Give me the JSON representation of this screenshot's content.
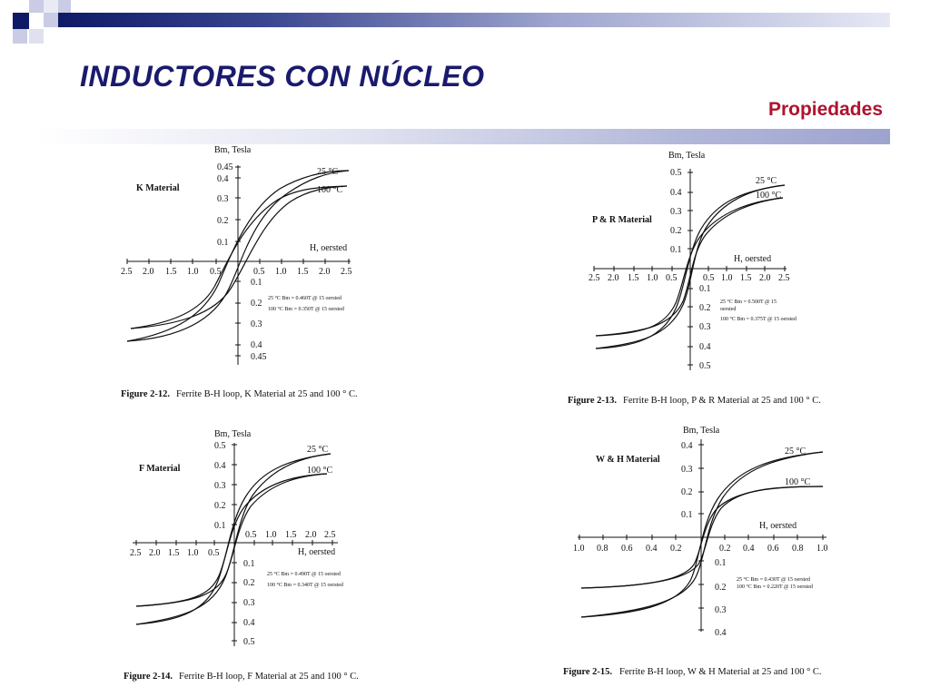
{
  "slide": {
    "title": "INDUCTORES CON NÚCLEO",
    "subtitle": "Propiedades",
    "colors": {
      "title": "#1a1a6e",
      "subtitle": "#b0112e",
      "accent_dark": "#0e1a66",
      "accent_light": "#b8bcdc"
    }
  },
  "figures": [
    {
      "material_label": "K Material",
      "y_label": "Bm, Tesla",
      "x_label": "H,  oersted",
      "y_ticks_pos": [
        "0.45",
        "0.4",
        "0.3",
        "0.2",
        "0.1"
      ],
      "y_ticks_neg": [
        "0.1",
        "0.2",
        "0.3",
        "0.4",
        "0.45"
      ],
      "x_ticks_neg": [
        "2.5",
        "2.0",
        "1.5",
        "1.0",
        "0.5"
      ],
      "x_ticks_pos": [
        "0.5",
        "1.0",
        "1.5",
        "2.0",
        "2.5"
      ],
      "curve_labels": [
        "25 °C",
        "100 °C"
      ],
      "notes": [
        "25 °C    Bm = 0.460T @ 15 oersted",
        "100 °C  Bm = 0.350T @ 15 oersted"
      ],
      "caption_num": "Figure 2-12.",
      "caption_text": "Ferrite B-H loop, K Material at 25 and 100 ° C."
    },
    {
      "material_label": "P & R Material",
      "y_label": "Bm, Tesla",
      "x_label": "H,  oersted",
      "y_ticks_pos": [
        "0.5",
        "0.4",
        "0.3",
        "0.2",
        "0.1"
      ],
      "y_ticks_neg": [
        "0.1",
        "0.2",
        "0.3",
        "0.4",
        "0.5"
      ],
      "x_ticks_neg": [
        "2.5",
        "2.0",
        "1.5",
        "1.0",
        "0.5"
      ],
      "x_ticks_pos": [
        "0.5",
        "1.0",
        "1.5",
        "2.0",
        "2.5"
      ],
      "curve_labels": [
        "25 °C",
        "100 °C"
      ],
      "notes": [
        "25 °C    Bm = 0.500T @ 15",
        "oersted",
        "100 °C Bm = 0.375T @ 15 oersted"
      ],
      "caption_num": "Figure 2-13.",
      "caption_text": "Ferrite B-H loop, P & R Material at 25 and 100 ° C."
    },
    {
      "material_label": "F Material",
      "y_label": "Bm, Tesla",
      "x_label": "H,  oersted",
      "y_ticks_pos": [
        "0.5",
        "0.4",
        "0.3",
        "0.2",
        "0.1"
      ],
      "y_ticks_neg": [
        "0.1",
        "0.2",
        "0.3",
        "0.4",
        "0.5"
      ],
      "x_ticks_neg": [
        "2.5",
        "2.0",
        "1.5",
        "1.0",
        "0.5"
      ],
      "x_ticks_pos": [
        "0.5",
        "1.0",
        "1.5",
        "2.0",
        "2.5"
      ],
      "curve_labels": [
        "25 °C",
        "100 °C"
      ],
      "notes": [
        "25 °C    Bm = 0.490T @ 15 oersted",
        "100 °C Bm = 0.340T @ 15 oersted"
      ],
      "caption_num": "Figure 2-14.",
      "caption_text": "Ferrite B-H loop, F Material at 25 and 100 ° C."
    },
    {
      "material_label": "W & H Material",
      "y_label": "Bm, Tesla",
      "x_label": "H,  oersted",
      "y_ticks_pos": [
        "0.4",
        "0.3",
        "0.2",
        "0.1"
      ],
      "y_ticks_neg": [
        "0.1",
        "0.2",
        "0.3",
        "0.4"
      ],
      "x_ticks_neg": [
        "1.0",
        "0.8",
        "0.6",
        "0.4",
        "0.2"
      ],
      "x_ticks_pos": [
        "0.2",
        "0.4",
        "0.6",
        "0.8",
        "1.0"
      ],
      "curve_labels": [
        "25 °C",
        "100 °C"
      ],
      "notes": [
        "25 °C    Bm = 0.430T @ 15 oersted",
        "100 °C  Bm = 0.220T @ 15 oersted"
      ],
      "caption_num": "Figure 2-15.",
      "caption_text": "Ferrite B-H loop, W & H Material at 25 and 100 ° C."
    }
  ]
}
